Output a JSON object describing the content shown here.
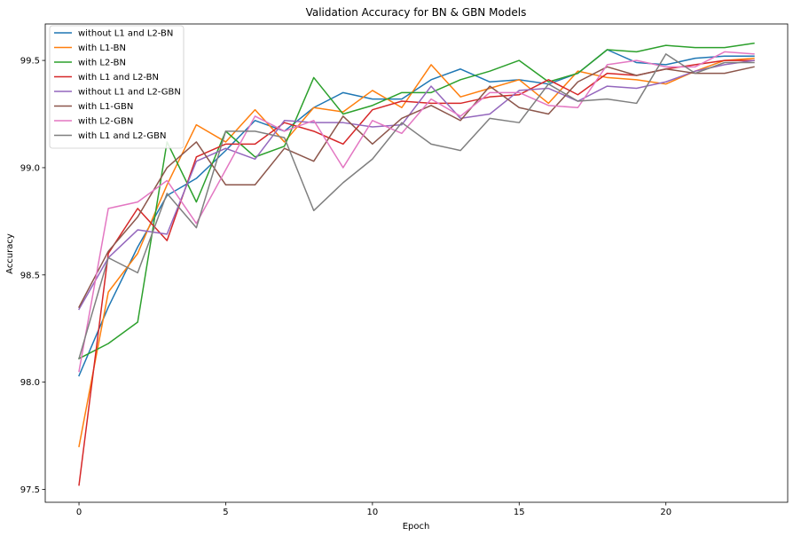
{
  "chart_data": {
    "type": "line",
    "title": "Validation Accuracy for BN & GBN Models",
    "xlabel": "Epoch",
    "ylabel": "Accuracy",
    "xlim": [
      -1.15,
      24.15
    ],
    "ylim": [
      97.44,
      99.67
    ],
    "xticks": [
      0,
      5,
      10,
      15,
      20
    ],
    "yticks": [
      97.5,
      98.0,
      98.5,
      99.0,
      99.5
    ],
    "xtick_labels": [
      "0",
      "5",
      "10",
      "15",
      "20"
    ],
    "ytick_labels": [
      "97.5",
      "98.0",
      "98.5",
      "99.0",
      "99.5"
    ],
    "grid": false,
    "legend_position": "top-left",
    "x": [
      0,
      1,
      2,
      3,
      4,
      5,
      6,
      7,
      8,
      9,
      10,
      11,
      12,
      13,
      14,
      15,
      16,
      17,
      18,
      19,
      20,
      21,
      22,
      23
    ],
    "series": [
      {
        "name": "without L1 and L2-BN",
        "color": "#1f77b4",
        "values": [
          98.03,
          98.35,
          98.63,
          98.87,
          98.95,
          99.08,
          99.22,
          99.17,
          99.28,
          99.35,
          99.32,
          99.32,
          99.41,
          99.46,
          99.4,
          99.41,
          99.39,
          99.44,
          99.55,
          99.49,
          99.48,
          99.51,
          99.52,
          99.52
        ]
      },
      {
        "name": "with L1-BN",
        "color": "#ff7f0e",
        "values": [
          97.7,
          98.42,
          98.6,
          98.92,
          99.2,
          99.12,
          99.27,
          99.12,
          99.28,
          99.26,
          99.36,
          99.28,
          99.48,
          99.33,
          99.37,
          99.41,
          99.3,
          99.45,
          99.42,
          99.41,
          99.39,
          99.45,
          99.5,
          99.51
        ]
      },
      {
        "name": "with L2-BN",
        "color": "#2ca02c",
        "values": [
          98.11,
          98.18,
          98.28,
          99.12,
          98.84,
          99.17,
          99.05,
          99.1,
          99.42,
          99.25,
          99.29,
          99.35,
          99.35,
          99.41,
          99.45,
          99.5,
          99.4,
          99.44,
          99.55,
          99.54,
          99.57,
          99.56,
          99.56,
          99.58
        ]
      },
      {
        "name": "with L1 and L2-BN",
        "color": "#d62728",
        "values": [
          97.52,
          98.6,
          98.81,
          98.66,
          99.05,
          99.11,
          99.11,
          99.21,
          99.17,
          99.11,
          99.27,
          99.31,
          99.3,
          99.3,
          99.33,
          99.34,
          99.41,
          99.34,
          99.44,
          99.43,
          99.46,
          99.48,
          99.5,
          99.5
        ]
      },
      {
        "name": "without L1 and L2-GBN",
        "color": "#9467bd",
        "values": [
          98.34,
          98.58,
          98.71,
          98.69,
          99.03,
          99.09,
          99.04,
          99.22,
          99.21,
          99.21,
          99.19,
          99.2,
          99.38,
          99.23,
          99.25,
          99.36,
          99.37,
          99.31,
          99.38,
          99.37,
          99.4,
          99.45,
          99.48,
          99.5
        ]
      },
      {
        "name": "with L1-GBN",
        "color": "#8c564b",
        "values": [
          98.35,
          98.61,
          98.77,
          99.0,
          99.12,
          98.92,
          98.92,
          99.09,
          99.03,
          99.24,
          99.11,
          99.23,
          99.29,
          99.22,
          99.38,
          99.28,
          99.25,
          99.4,
          99.47,
          99.43,
          99.46,
          99.44,
          99.44,
          99.47
        ]
      },
      {
        "name": "with L2-GBN",
        "color": "#e377c2",
        "values": [
          98.05,
          98.81,
          98.84,
          98.94,
          98.74,
          98.99,
          99.24,
          99.17,
          99.22,
          99.0,
          99.22,
          99.16,
          99.32,
          99.24,
          99.35,
          99.35,
          99.29,
          99.28,
          99.48,
          99.5,
          99.47,
          99.47,
          99.54,
          99.53
        ]
      },
      {
        "name": "with L1 and L2-GBN",
        "color": "#7f7f7f",
        "values": [
          98.11,
          98.58,
          98.51,
          98.88,
          98.72,
          99.17,
          99.17,
          99.14,
          98.8,
          98.93,
          99.04,
          99.21,
          99.11,
          99.08,
          99.23,
          99.21,
          99.39,
          99.31,
          99.32,
          99.3,
          99.53,
          99.44,
          99.49,
          99.49
        ]
      }
    ]
  }
}
